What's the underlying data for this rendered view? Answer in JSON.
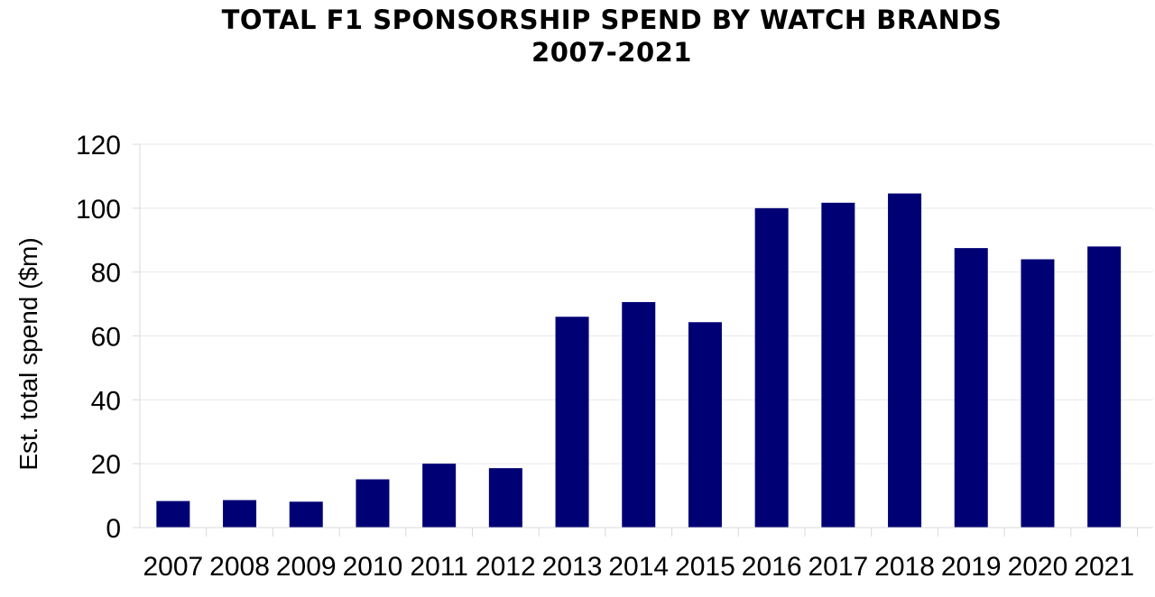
{
  "chart_data": {
    "type": "bar",
    "title": "TOTAL F1 SPONSORSHIP SPEND BY WATCH BRANDS",
    "subtitle": "2007-2021",
    "xlabel": "",
    "ylabel": "Est. total spend ($m)",
    "categories": [
      "2007",
      "2008",
      "2009",
      "2010",
      "2011",
      "2012",
      "2013",
      "2014",
      "2015",
      "2016",
      "2017",
      "2018",
      "2019",
      "2020",
      "2021"
    ],
    "values": [
      8.3,
      8.6,
      8.1,
      15.1,
      20.0,
      18.6,
      66.0,
      70.6,
      64.3,
      100.0,
      101.7,
      104.6,
      87.5,
      84.0,
      88.0
    ],
    "ylim": [
      0,
      120
    ],
    "yticks": [
      0,
      20,
      40,
      60,
      80,
      100,
      120
    ],
    "bar_color": "#000075",
    "grid_color": "#e8e8e8",
    "grid": true,
    "legend": "none"
  }
}
